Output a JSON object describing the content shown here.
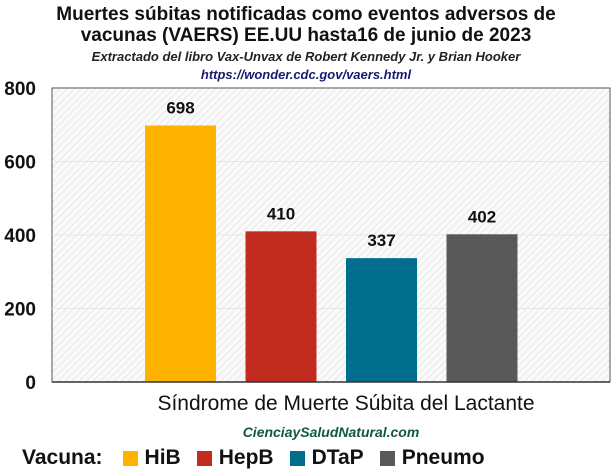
{
  "title_line1": "Muertes súbitas notificadas como eventos adversos de",
  "title_line2": "vacunas (VAERS) EE.UU hasta16 de junio de 2023",
  "subtitle": "Extractado del libro Vax-Unvax de Robert Kennedy Jr. y Brian Hooker",
  "source_url": "https://wonder.cdc.gov/vaers.html",
  "watermark": "CienciaySaludNatural.com",
  "legend_label": "Vacuna:",
  "chart_data": {
    "type": "bar",
    "title": "Muertes súbitas notificadas como eventos adversos de vacunas (VAERS) EE.UU hasta16 de junio de 2023",
    "xlabel": "Síndrome de Muerte Súbita del Lactante",
    "ylabel": "",
    "ylim": [
      0,
      800
    ],
    "yticks": [
      0,
      200,
      400,
      600,
      800
    ],
    "grid": true,
    "legend_position": "bottom",
    "categories": [
      "Síndrome de Muerte Súbita del Lactante"
    ],
    "series": [
      {
        "name": "HiB",
        "values": [
          698
        ],
        "color": "#FFB300"
      },
      {
        "name": "HepB",
        "values": [
          410
        ],
        "color": "#C22B20"
      },
      {
        "name": "DTaP",
        "values": [
          337
        ],
        "color": "#006E8C"
      },
      {
        "name": "Pneumo",
        "values": [
          402
        ],
        "color": "#595959"
      }
    ]
  }
}
